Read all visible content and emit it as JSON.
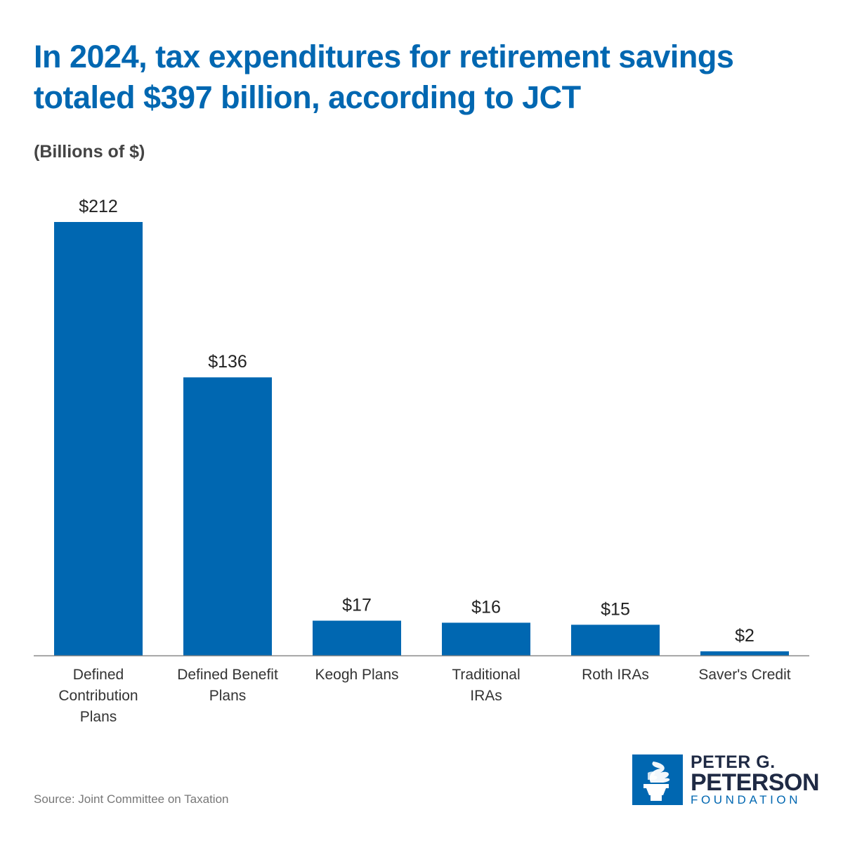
{
  "title": "In 2024, tax expenditures for retirement savings totaled $397 billion, according to JCT",
  "subtitle": "(Billions of $)",
  "source": "Source: Joint Committee on Taxation",
  "logo": {
    "line1": "PETER G.",
    "line2": "PETERSON",
    "line3": "FOUNDATION"
  },
  "colors": {
    "accent": "#0067b1",
    "bar": "#0067b1",
    "axis": "#888888"
  },
  "chart_data": {
    "type": "bar",
    "title": "In 2024, tax expenditures for retirement savings totaled $397 billion, according to JCT",
    "ylabel": "(Billions of $)",
    "xlabel": "",
    "ylim": [
      0,
      212
    ],
    "grid": false,
    "categories": [
      [
        "Defined",
        "Contribution",
        "Plans"
      ],
      [
        "Defined Benefit",
        "Plans"
      ],
      [
        "Keogh Plans"
      ],
      [
        "Traditional",
        "IRAs"
      ],
      [
        "Roth IRAs"
      ],
      [
        "Saver's Credit"
      ]
    ],
    "values": [
      212,
      136,
      17,
      16,
      15,
      2
    ],
    "value_labels": [
      "$212",
      "$136",
      "$17",
      "$16",
      "$15",
      "$2"
    ]
  }
}
